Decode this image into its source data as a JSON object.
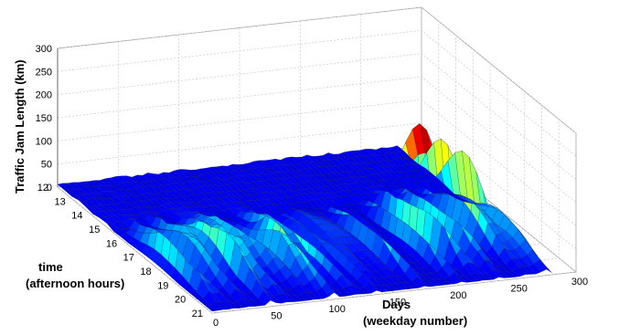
{
  "chart_data": {
    "type": "surface3d",
    "title": "",
    "zlabel": "Traffic Jam Length (km)",
    "ylabel_line1": "time",
    "ylabel_line2": "(afternoon hours)",
    "xlabel_line1": "Days",
    "xlabel_line2": "(weekday number)",
    "x_range": [
      0,
      300
    ],
    "y_range": [
      12,
      21
    ],
    "z_range": [
      0,
      300
    ],
    "x_ticks": [
      0,
      50,
      100,
      150,
      200,
      250,
      300
    ],
    "y_ticks": [
      12,
      13,
      14,
      15,
      16,
      17,
      18,
      19,
      20,
      21
    ],
    "z_ticks": [
      0,
      50,
      100,
      150,
      200,
      250,
      300
    ],
    "grid": true,
    "colormap": "jet",
    "notable_peaks": [
      {
        "day": 10,
        "hour": 18,
        "jam_km": 115
      },
      {
        "day": 50,
        "hour": 18,
        "jam_km": 140
      },
      {
        "day": 100,
        "hour": 18.5,
        "jam_km": 130
      },
      {
        "day": 120,
        "hour": 18,
        "jam_km": 145
      },
      {
        "day": 175,
        "hour": 18,
        "jam_km": 150
      },
      {
        "day": 205,
        "hour": 18,
        "jam_km": 160
      },
      {
        "day": 222,
        "hour": 17.5,
        "jam_km": 250
      },
      {
        "day": 226,
        "hour": 17.5,
        "jam_km": 190
      },
      {
        "day": 240,
        "hour": 17.5,
        "jam_km": 200
      },
      {
        "day": 258,
        "hour": 17.5,
        "jam_km": 165
      }
    ]
  }
}
